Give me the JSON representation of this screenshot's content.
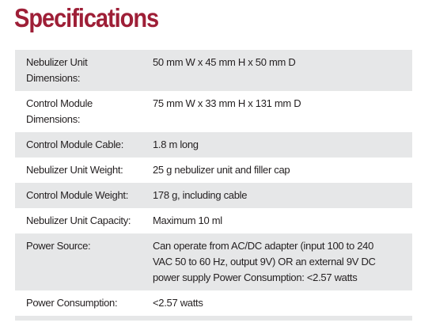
{
  "header": {
    "title": "Specifications"
  },
  "table": {
    "rows": [
      [
        "Nebulizer Unit Dimensions:",
        "50 mm W x 45 mm H x 50 mm D"
      ],
      [
        "Control Module Dimensions:",
        "75 mm W x 33 mm H x 131 mm D"
      ],
      [
        "Control Module Cable:",
        "1.8 m long"
      ],
      [
        "Nebulizer Unit Weight:",
        "25 g nebulizer unit and filler cap"
      ],
      [
        "Control Module Weight:",
        "178 g, including cable"
      ],
      [
        "Nebulizer Unit Capacity:",
        "Maximum 10 ml"
      ],
      [
        "Power Source:",
        "Can operate from AC/DC adapter (input 100 to 240 VAC 50 to 60 Hz, output 9V) OR an external 9V DC power supply Power Consumption: <2.57 watts"
      ],
      [
        "Power Consumption:",
        "<2.57 watts"
      ]
    ]
  }
}
